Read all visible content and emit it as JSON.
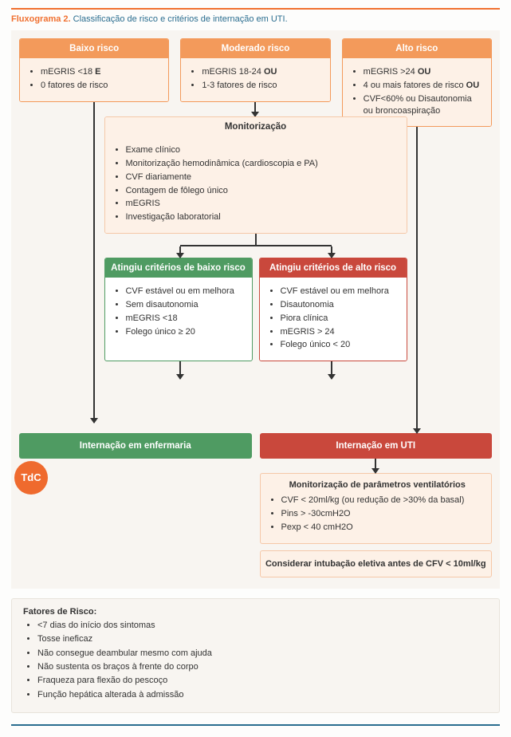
{
  "title": {
    "num": "Fluxograma 2.",
    "txt": "Classificação de risco e critérios de internação em UTI."
  },
  "colors": {
    "accent_orange": "#f07030",
    "header_orange": "#f39a5b",
    "peach_bg": "#fdf1e7",
    "peach_border": "#f5c8a8",
    "green": "#4f9b62",
    "red": "#c9483c",
    "teal": "#2a6d8f",
    "canvas_bg": "#f8f5f1",
    "arrow": "#333333"
  },
  "risk": {
    "low": {
      "title": "Baixo risco",
      "items": [
        "mEGRIS <18 <b>E</b>",
        "0 fatores de risco"
      ]
    },
    "mod": {
      "title": "Moderado risco",
      "items": [
        "mEGRIS 18-24 <b>OU</b>",
        "1-3 fatores de risco"
      ]
    },
    "high": {
      "title": "Alto risco",
      "items": [
        "mEGRIS >24 <b>OU</b>",
        "4 ou mais fatores de risco <b>OU</b>",
        "CVF<60% ou Disautonomia ou broncoaspiração"
      ]
    }
  },
  "monitor": {
    "title": "Monitorização",
    "items": [
      "Exame clínico",
      "Monitorização hemodinâmica (cardioscopia e PA)",
      "CVF diariamente",
      "Contagem de fôlego único",
      "mEGRIS",
      "Investigação laboratorial"
    ]
  },
  "criteria": {
    "low": {
      "title": "Atingiu critérios de baixo risco",
      "items": [
        "CVF estável ou em melhora",
        "Sem disautonomia",
        "mEGRIS <18",
        "Folego único ≥ 20"
      ]
    },
    "high": {
      "title": "Atingiu critérios de alto risco",
      "items": [
        "CVF estável ou em melhora",
        "Disautonomia",
        "Piora clínica",
        "mEGRIS > 24",
        "Folego único < 20"
      ]
    }
  },
  "outcome": {
    "ward": "Internação em enfermaria",
    "icu": "Internação em UTI"
  },
  "vent": {
    "title": "Monitorização de parâmetros ventilatórios",
    "items": [
      "CVF < 20ml/kg (ou redução de >30% da basal)",
      "Pins > -30cmH2O",
      "Pexp < 40 cmH2O"
    ]
  },
  "consider": "Considerar intubação eletiva antes de CFV < 10ml/kg",
  "risk_factors": {
    "title": "Fatores de Risco:",
    "items": [
      "<7 dias do início dos sintomas",
      "Tosse ineficaz",
      "Não consegue deambular mesmo com ajuda",
      "Não sustenta os braços à frente do corpo",
      "Fraqueza para flexão do pescoço",
      "Função hepática alterada à admissão"
    ]
  },
  "logo": "TdC"
}
